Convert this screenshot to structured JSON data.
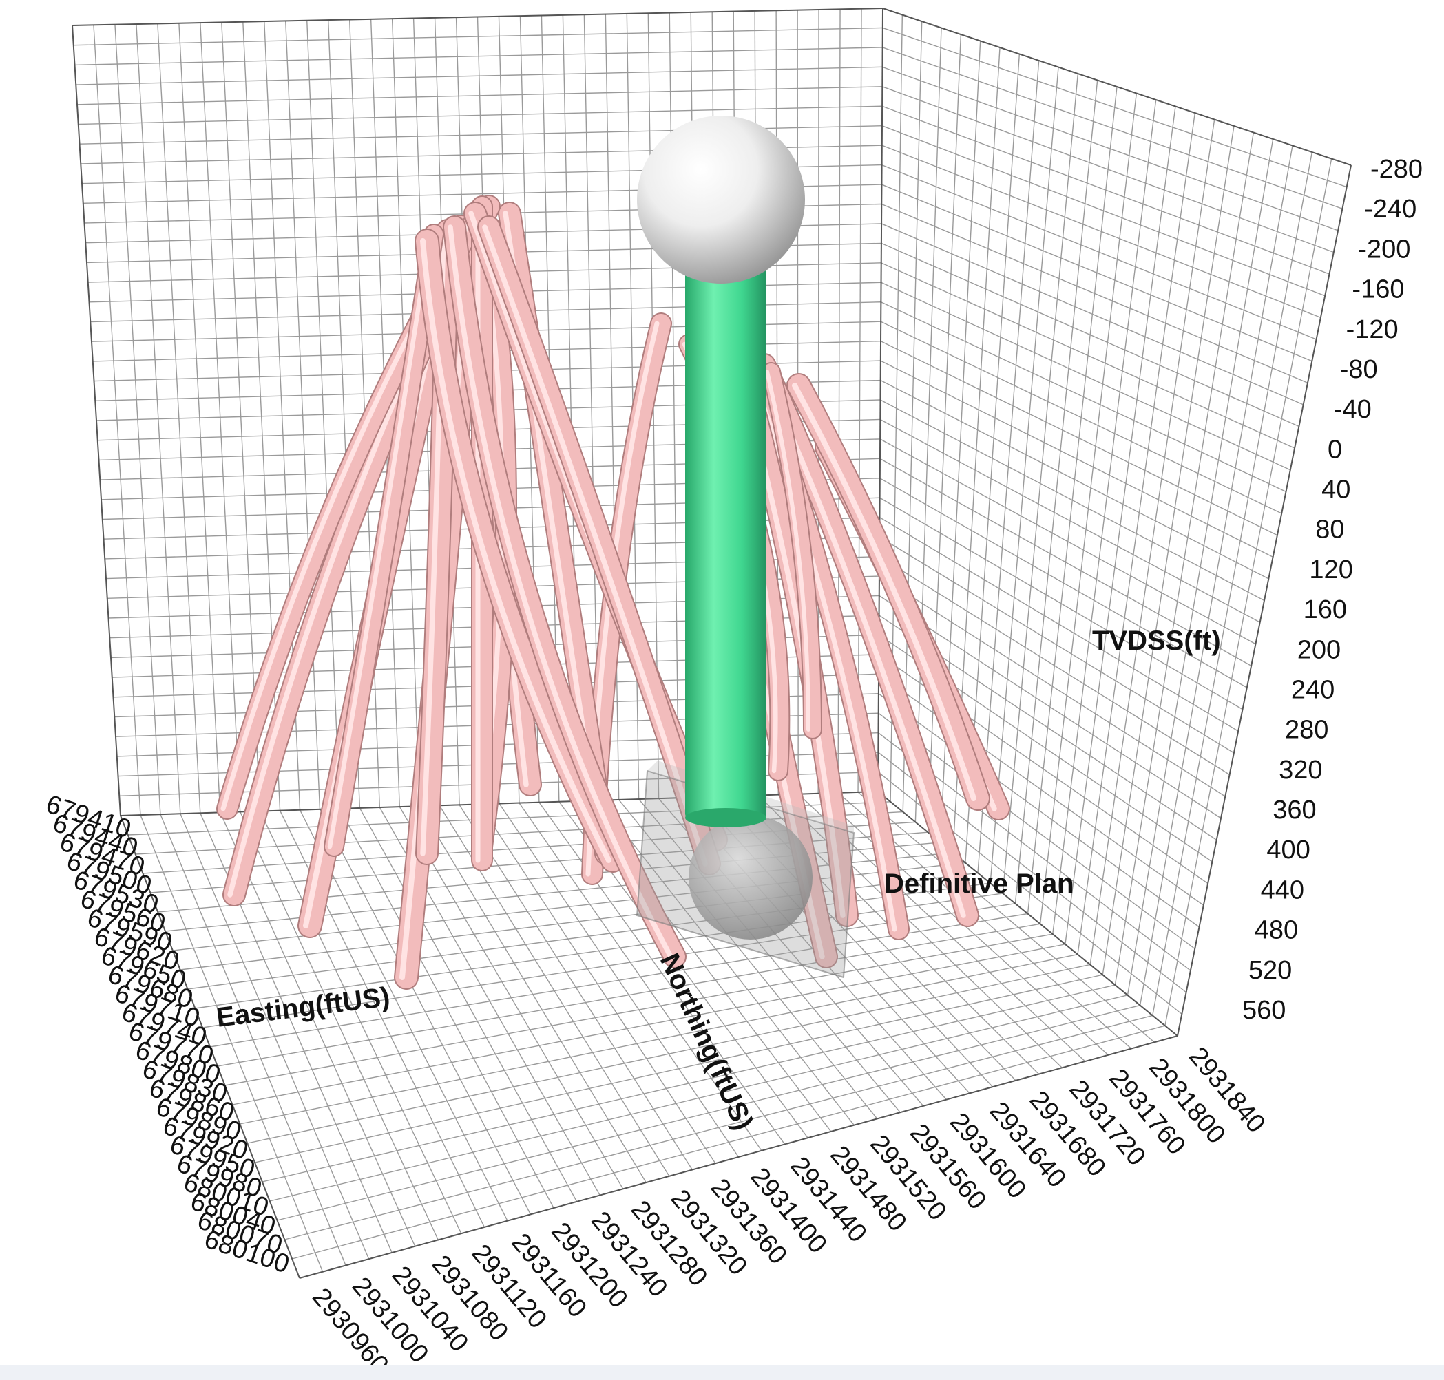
{
  "chart_data": {
    "type": "3d-well-trajectory",
    "axes": {
      "easting": {
        "label": "Easting(ftUS)",
        "ticks": [
          "679410",
          "679440",
          "679470",
          "679500",
          "679530",
          "679560",
          "679590",
          "679620",
          "679650",
          "679680",
          "679710",
          "679740",
          "679770",
          "679800",
          "679830",
          "679860",
          "679890",
          "679920",
          "679950",
          "679980",
          "680010",
          "680040",
          "680070",
          "680100"
        ]
      },
      "northing": {
        "label": "Northing(ftUS)",
        "ticks": [
          "2930960",
          "2931000",
          "2931040",
          "2931080",
          "2931120",
          "2931160",
          "2931200",
          "2931240",
          "2931280",
          "2931320",
          "2931360",
          "2931400",
          "2931440",
          "2931480",
          "2931520",
          "2931560",
          "2931600",
          "2931640",
          "2931680",
          "2931720",
          "2931760",
          "2931800",
          "2931840"
        ]
      },
      "tvdss": {
        "label": "TVDSS(ft)",
        "ticks": [
          "-280",
          "-240",
          "-200",
          "-160",
          "-120",
          "-80",
          "-40",
          "0",
          "40",
          "80",
          "120",
          "160",
          "200",
          "240",
          "280",
          "320",
          "360",
          "400",
          "440",
          "480",
          "520",
          "560"
        ]
      }
    },
    "annotation": "Definitive Plan",
    "colors": {
      "offset_wells": "#f2bcbc",
      "planned_well": "#3fd68f",
      "markers": "#d8d8d8",
      "grid": "#9a9a9a"
    }
  }
}
